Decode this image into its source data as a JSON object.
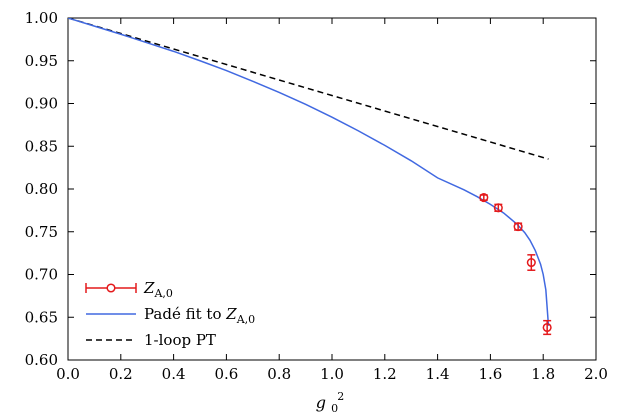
{
  "chart_data": {
    "type": "line",
    "title": "",
    "xlabel": "g_0^2",
    "ylabel": "",
    "xlim": [
      0.0,
      2.0
    ],
    "ylim": [
      0.6,
      1.0
    ],
    "xticks": [
      "0.0",
      "0.2",
      "0.4",
      "0.6",
      "0.8",
      "1.0",
      "1.2",
      "1.4",
      "1.6",
      "1.8",
      "2.0"
    ],
    "yticks": [
      "0.60",
      "0.65",
      "0.70",
      "0.75",
      "0.80",
      "0.85",
      "0.90",
      "0.95",
      "1.00"
    ],
    "grid": false,
    "legend_position": "bottom-left",
    "series": [
      {
        "name": "Z_{A,0}",
        "kind": "errorbar",
        "color": "#e41a1c",
        "x": [
          1.575,
          1.63,
          1.705,
          1.755,
          1.815
        ],
        "y": [
          0.79,
          0.778,
          0.756,
          0.714,
          0.638
        ],
        "yerr": [
          0.003,
          0.004,
          0.004,
          0.009,
          0.008
        ]
      },
      {
        "name": "Padé fit to Z_{A,0}",
        "kind": "line",
        "color": "#4169e1",
        "x": [
          0.0,
          0.1,
          0.2,
          0.3,
          0.4,
          0.5,
          0.6,
          0.7,
          0.8,
          0.9,
          1.0,
          1.1,
          1.2,
          1.3,
          1.4,
          1.5,
          1.55,
          1.6,
          1.65,
          1.7,
          1.73,
          1.75,
          1.77,
          1.79,
          1.8,
          1.81,
          1.82
        ],
        "y": [
          1.0,
          0.9905,
          0.981,
          0.971,
          0.961,
          0.95,
          0.9385,
          0.926,
          0.913,
          0.899,
          0.884,
          0.868,
          0.851,
          0.833,
          0.813,
          0.799,
          0.791,
          0.782,
          0.772,
          0.759,
          0.749,
          0.74,
          0.728,
          0.712,
          0.7,
          0.682,
          0.64
        ]
      },
      {
        "name": "1-loop PT",
        "kind": "dashed",
        "color": "#000000",
        "x": [
          0.0,
          1.82
        ],
        "y": [
          1.0,
          0.835
        ]
      }
    ],
    "legend": {
      "entries": [
        {
          "label_main": "Z",
          "label_sub": "A,0",
          "label_prefix": ""
        },
        {
          "label_main": "Z",
          "label_sub": "A,0",
          "label_prefix": "Padé fit to "
        },
        {
          "label_main": "",
          "label_sub": "",
          "label_prefix": "1-loop PT"
        }
      ]
    },
    "xlabel_main": "g",
    "xlabel_sub": "0",
    "xlabel_sup": "2"
  }
}
